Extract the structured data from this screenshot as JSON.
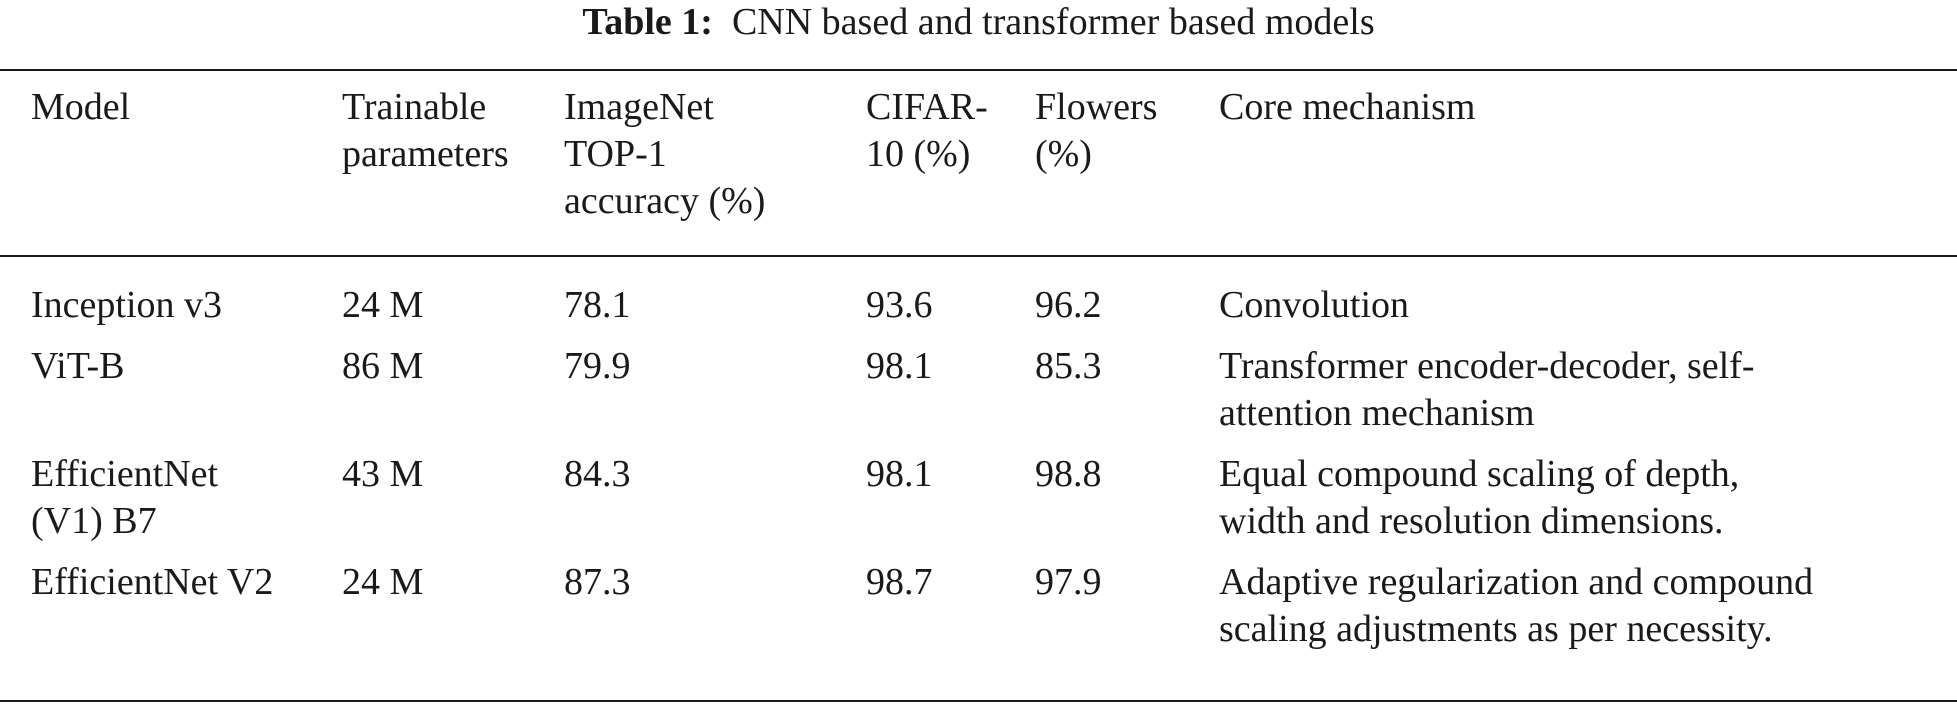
{
  "caption": {
    "label": "Table 1:",
    "text": "CNN based and transformer based models"
  },
  "table": {
    "headers": [
      [
        "Model"
      ],
      [
        "Trainable",
        "parameters"
      ],
      [
        "ImageNet",
        "TOP-1",
        "accuracy (%)"
      ],
      [
        "CIFAR-",
        "10 (%)"
      ],
      [
        "Flowers",
        "(%)"
      ],
      [
        "Core mechanism"
      ]
    ],
    "rows": [
      {
        "model": [
          "Inception v3"
        ],
        "params": "24 M",
        "imagenet": "78.1",
        "cifar": "93.6",
        "flowers": "96.2",
        "mechanism": [
          "Convolution"
        ]
      },
      {
        "model": [
          "ViT-B"
        ],
        "params": "86 M",
        "imagenet": "79.9",
        "cifar": "98.1",
        "flowers": "85.3",
        "mechanism": [
          "Transformer encoder-decoder, self-",
          "attention mechanism"
        ]
      },
      {
        "model": [
          "EfficientNet",
          "(V1) B7"
        ],
        "params": "43 M",
        "imagenet": "84.3",
        "cifar": "98.1",
        "flowers": "98.8",
        "mechanism": [
          "Equal compound scaling of depth,",
          "width and resolution dimensions."
        ]
      },
      {
        "model": [
          "EfficientNet V2"
        ],
        "params": "24 M",
        "imagenet": "87.3",
        "cifar": "98.7",
        "flowers": "97.9",
        "mechanism": [
          "Adaptive regularization and compound",
          "scaling adjustments as per necessity."
        ]
      }
    ]
  }
}
